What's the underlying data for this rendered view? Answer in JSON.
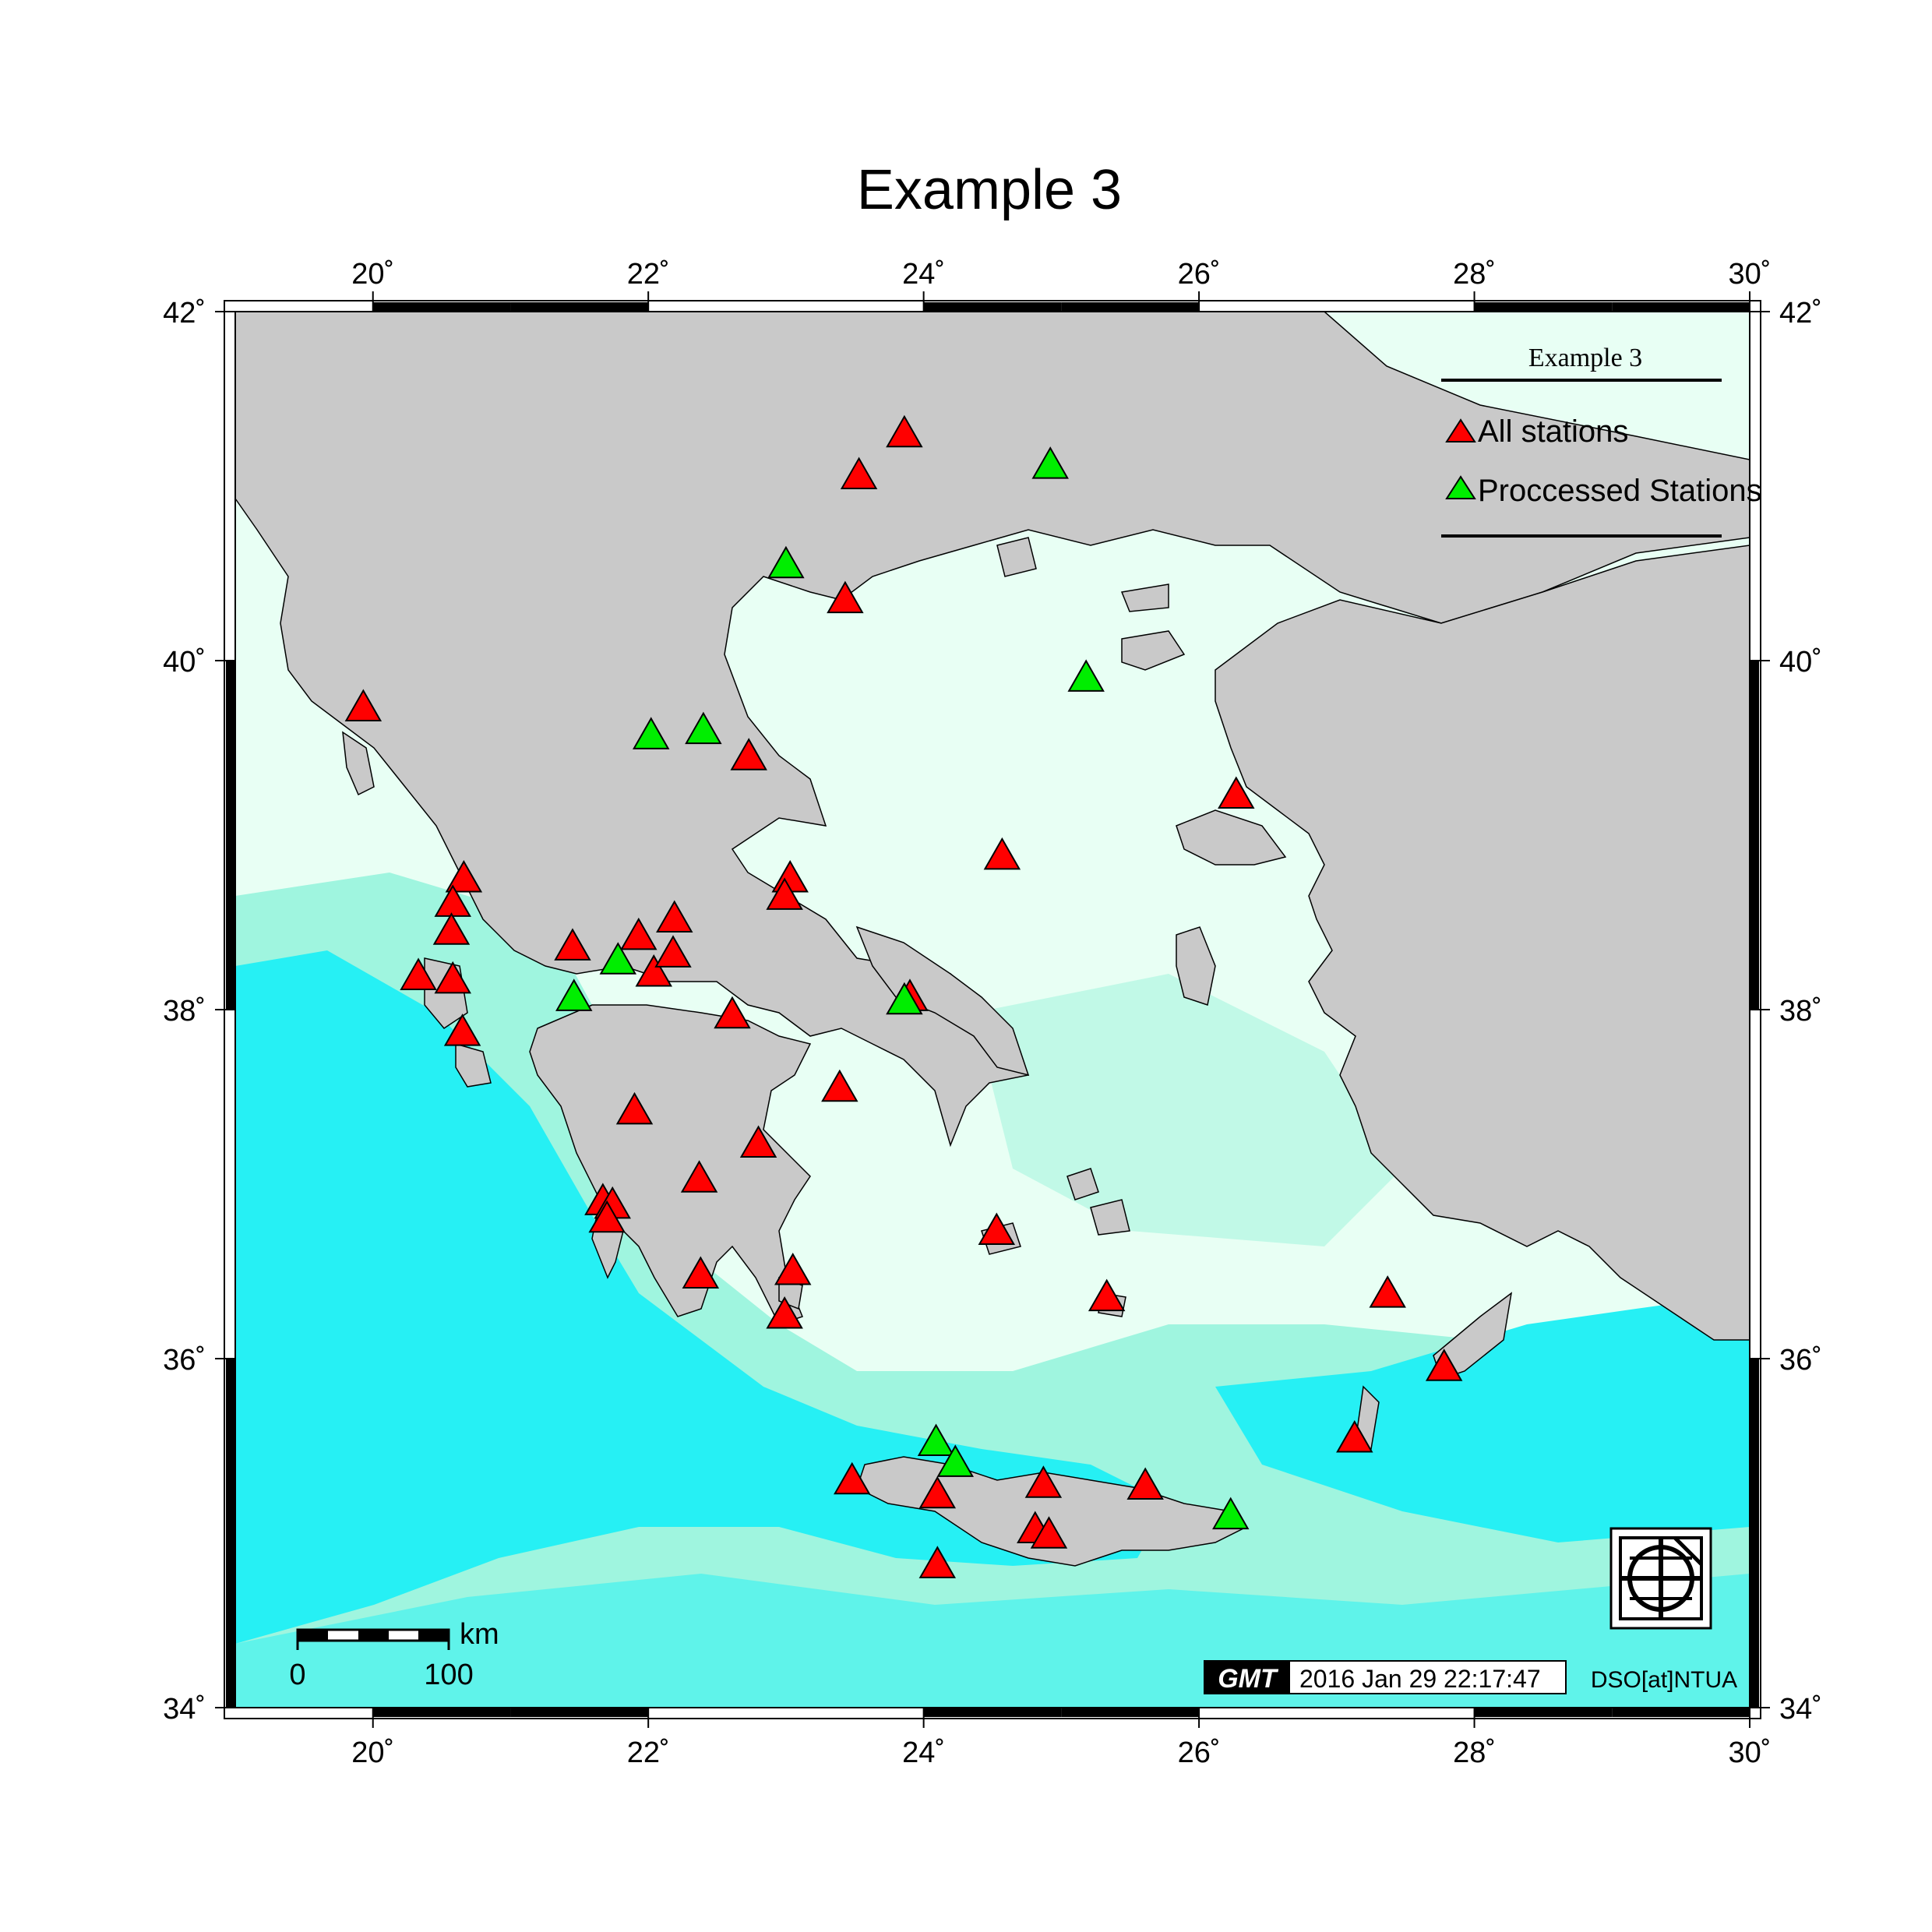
{
  "title": "Example 3",
  "map": {
    "lon_range": [
      19,
      30
    ],
    "lat_range": [
      34,
      42
    ],
    "lon_ticks": [
      {
        "value": 20,
        "label": "20˚"
      },
      {
        "value": 22,
        "label": "22˚"
      },
      {
        "value": 24,
        "label": "24˚"
      },
      {
        "value": 26,
        "label": "26˚"
      },
      {
        "value": 28,
        "label": "28˚"
      },
      {
        "value": 30,
        "label": "30˚"
      }
    ],
    "lat_ticks": [
      {
        "value": 34,
        "label": "34˚"
      },
      {
        "value": 36,
        "label": "36˚"
      },
      {
        "value": 38,
        "label": "38˚"
      },
      {
        "value": 40,
        "label": "40˚"
      },
      {
        "value": 42,
        "label": "42˚"
      }
    ],
    "colors": {
      "land": "#c8c8c8",
      "shallow_sea": "#e8fff4",
      "mid_sea": "#9ff5df",
      "deep_sea": "#22f0f5",
      "all_stations": "#ff0000",
      "processed_stations": "#00ee00"
    }
  },
  "legend": {
    "title": "Example 3",
    "items": [
      {
        "label": "All stations",
        "color": "#ff0000"
      },
      {
        "label": "Proccessed Stations",
        "color": "#00ee00"
      }
    ]
  },
  "scale_bar": {
    "unit": "km",
    "start_label": "0",
    "end_label": "100"
  },
  "timestamp": {
    "logo_text": "GMT",
    "text": "2016 Jan 29 22:17:47"
  },
  "credit": "DSO[at]NTUA",
  "logo_icon": "globe-grid-icon",
  "stations": {
    "all": [
      [
        19.93,
        39.73
      ],
      [
        20.66,
        38.75
      ],
      [
        20.58,
        38.61
      ],
      [
        20.57,
        38.45
      ],
      [
        20.33,
        38.19
      ],
      [
        20.58,
        38.17
      ],
      [
        20.65,
        37.87
      ],
      [
        21.45,
        38.36
      ],
      [
        21.93,
        38.42
      ],
      [
        22.04,
        38.21
      ],
      [
        22.19,
        38.52
      ],
      [
        22.18,
        38.32
      ],
      [
        22.61,
        37.97
      ],
      [
        21.9,
        37.42
      ],
      [
        21.67,
        36.9
      ],
      [
        21.74,
        36.88
      ],
      [
        21.7,
        36.8
      ],
      [
        22.37,
        37.03
      ],
      [
        22.8,
        37.23
      ],
      [
        22.38,
        36.48
      ],
      [
        23.05,
        36.5
      ],
      [
        22.99,
        36.25
      ],
      [
        23.39,
        37.55
      ],
      [
        23.03,
        38.75
      ],
      [
        22.99,
        38.65
      ],
      [
        22.73,
        39.45
      ],
      [
        23.43,
        40.35
      ],
      [
        23.53,
        41.06
      ],
      [
        23.86,
        41.3
      ],
      [
        23.9,
        38.07
      ],
      [
        24.57,
        38.88
      ],
      [
        26.27,
        39.23
      ],
      [
        24.53,
        36.73
      ],
      [
        25.33,
        36.35
      ],
      [
        25.61,
        35.27
      ],
      [
        27.37,
        36.37
      ],
      [
        27.78,
        35.95
      ],
      [
        27.13,
        35.54
      ],
      [
        23.48,
        35.3
      ],
      [
        24.1,
        35.22
      ],
      [
        24.87,
        35.28
      ],
      [
        24.81,
        35.02
      ],
      [
        24.91,
        34.99
      ],
      [
        24.1,
        34.82
      ]
    ],
    "processed": [
      [
        23.0,
        40.55
      ],
      [
        24.92,
        41.12
      ],
      [
        25.18,
        39.9
      ],
      [
        22.02,
        39.57
      ],
      [
        22.4,
        39.6
      ],
      [
        21.78,
        38.28
      ],
      [
        21.46,
        38.07
      ],
      [
        23.86,
        38.05
      ],
      [
        24.09,
        35.52
      ],
      [
        24.23,
        35.4
      ],
      [
        26.23,
        35.1
      ]
    ]
  }
}
